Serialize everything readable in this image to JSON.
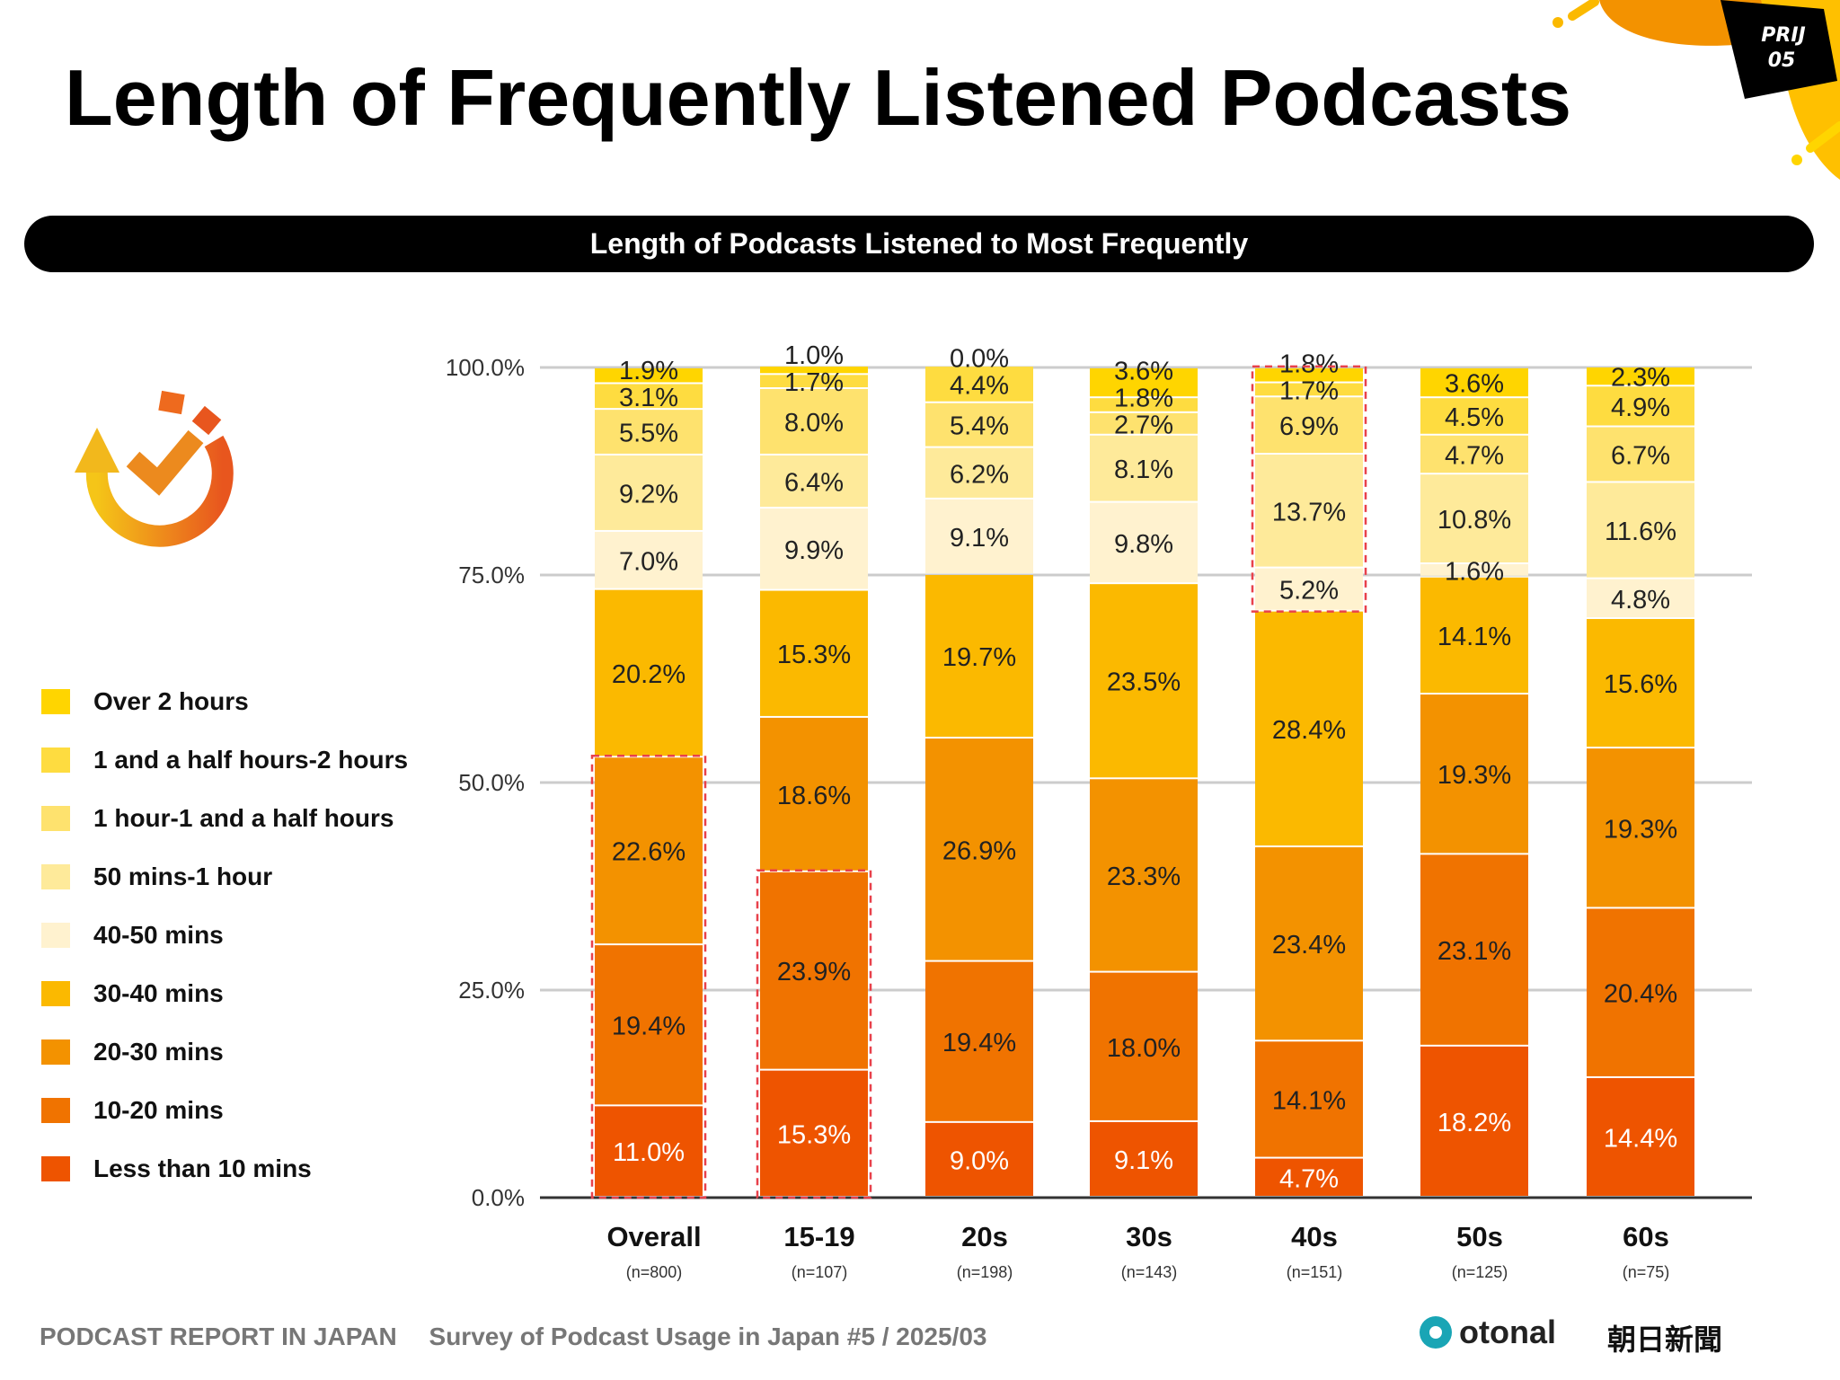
{
  "header": {
    "title": "Length of Frequently Listened Podcasts",
    "badge_line1": "PRIJ",
    "badge_line2": "05"
  },
  "banner": {
    "text": "Length of Podcasts Listened to Most Frequently"
  },
  "icon": "clock-refresh-check-icon",
  "chart_data": {
    "type": "bar",
    "stacked": true,
    "title": "Length of Podcasts Listened to Most Frequently",
    "categories": [
      "Overall",
      "15-19",
      "20s",
      "30s",
      "40s",
      "50s",
      "60s"
    ],
    "sample_sizes": [
      "(n=800)",
      "(n=107)",
      "(n=198)",
      "(n=143)",
      "(n=151)",
      "(n=125)",
      "(n=75)"
    ],
    "ylim": [
      0,
      100
    ],
    "yticks": [
      "0.0%",
      "25.0%",
      "50.0%",
      "75.0%",
      "100.0%"
    ],
    "grid": true,
    "legend_position": "left",
    "series": [
      {
        "name": "Less than 10 mins",
        "color": "#EE5400",
        "values": [
          11.0,
          15.3,
          9.0,
          9.1,
          4.7,
          18.2,
          14.4
        ]
      },
      {
        "name": "10-20 mins",
        "color": "#F07300",
        "values": [
          19.4,
          23.9,
          19.4,
          18.0,
          14.1,
          23.1,
          20.4
        ]
      },
      {
        "name": "20-30 mins",
        "color": "#F39200",
        "values": [
          22.6,
          18.6,
          26.9,
          23.3,
          23.4,
          19.3,
          19.3
        ]
      },
      {
        "name": "30-40 mins",
        "color": "#FBB900",
        "values": [
          20.2,
          15.3,
          19.7,
          23.5,
          28.4,
          14.1,
          15.6
        ]
      },
      {
        "name": "40-50 mins",
        "color": "#FFF2CF",
        "values": [
          7.0,
          9.9,
          9.1,
          9.8,
          5.2,
          1.6,
          4.8
        ]
      },
      {
        "name": "50 mins-1 hour",
        "color": "#FEEA9A",
        "values": [
          9.2,
          6.4,
          6.2,
          8.1,
          13.7,
          10.8,
          11.6
        ]
      },
      {
        "name": "1 hour-1 and a half hours",
        "color": "#FEE26E",
        "values": [
          5.5,
          8.0,
          5.4,
          2.7,
          6.9,
          4.7,
          6.7
        ]
      },
      {
        "name": "1 and a half hours-2 hours",
        "color": "#FEDC40",
        "values": [
          3.1,
          1.7,
          4.4,
          1.8,
          1.7,
          4.5,
          4.9
        ]
      },
      {
        "name": "Over 2 hours",
        "color": "#FFD500",
        "values": [
          1.9,
          1.0,
          0.0,
          3.6,
          1.8,
          3.6,
          2.3
        ]
      }
    ],
    "highlights": [
      {
        "category": "Overall",
        "series": [
          "Less than 10 mins",
          "10-20 mins",
          "20-30 mins"
        ]
      },
      {
        "category": "15-19",
        "series": [
          "Less than 10 mins",
          "10-20 mins"
        ]
      },
      {
        "category": "40s",
        "series": [
          "40-50 mins",
          "50 mins-1 hour",
          "1 hour-1 and a half hours",
          "1 and a half hours-2 hours",
          "Over 2 hours"
        ]
      }
    ],
    "highlight_color": "#E8414B"
  },
  "legend_order": [
    8,
    7,
    6,
    5,
    4,
    3,
    2,
    1,
    0
  ],
  "footer": {
    "report": "PODCAST REPORT IN JAPAN",
    "survey": "Survey of Podcast Usage in Japan #5 / 2025/03"
  },
  "logos": {
    "otonal": "otonal",
    "asahi": "朝日新聞"
  }
}
